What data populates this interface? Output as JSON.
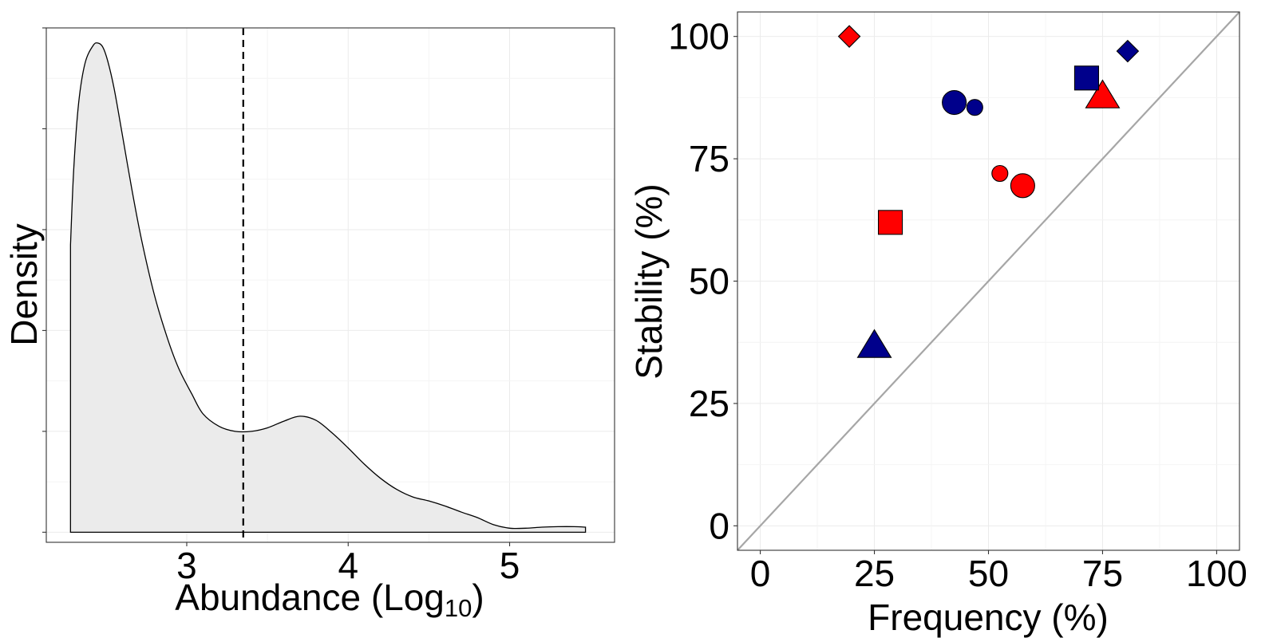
{
  "chart_data": [
    {
      "type": "area",
      "subtype": "density",
      "title": "",
      "xlabel": "Abundance (Log",
      "xlabel_subscript": "10",
      "xlabel_suffix": ")",
      "ylabel": "Density",
      "xlim": [
        2.13,
        5.65
      ],
      "ylim": [
        -0.02,
        1.0
      ],
      "x_ticks": [
        3,
        4,
        5
      ],
      "x_tick_labels": [
        "3",
        "4",
        "5"
      ],
      "y_ticks": [
        0,
        0.2,
        0.4,
        0.6,
        0.8,
        1.0
      ],
      "y_tick_labels": [
        "",
        "",
        "",
        "",
        "",
        ""
      ],
      "grid": true,
      "fill_color": "#ebebeb",
      "line_color": "#000000",
      "reference_line": {
        "x": 3.35,
        "style": "dashed"
      },
      "x": [
        2.28,
        2.3,
        2.33,
        2.37,
        2.42,
        2.45,
        2.48,
        2.51,
        2.55,
        2.6,
        2.66,
        2.72,
        2.8,
        2.88,
        2.95,
        3.03,
        3.1,
        3.2,
        3.3,
        3.4,
        3.5,
        3.6,
        3.7,
        3.8,
        3.9,
        4.0,
        4.1,
        4.2,
        4.3,
        4.4,
        4.5,
        4.6,
        4.7,
        4.8,
        4.9,
        5.0,
        5.1,
        5.2,
        5.3,
        5.4,
        5.47
      ],
      "y": [
        0.57,
        0.72,
        0.85,
        0.93,
        0.965,
        0.97,
        0.962,
        0.935,
        0.88,
        0.79,
        0.68,
        0.58,
        0.47,
        0.385,
        0.325,
        0.275,
        0.235,
        0.21,
        0.2,
        0.2,
        0.207,
        0.22,
        0.23,
        0.222,
        0.197,
        0.167,
        0.135,
        0.107,
        0.085,
        0.07,
        0.062,
        0.052,
        0.04,
        0.029,
        0.015,
        0.008,
        0.008,
        0.01,
        0.011,
        0.011,
        0.01
      ]
    },
    {
      "type": "scatter",
      "title": "",
      "xlabel": "Frequency (%)",
      "ylabel": "Stability (%)",
      "xlim": [
        -5,
        105
      ],
      "ylim": [
        -5,
        105
      ],
      "x_ticks": [
        0,
        25,
        50,
        75,
        100
      ],
      "x_tick_labels": [
        "0",
        "25",
        "50",
        "75",
        "100"
      ],
      "y_ticks": [
        0,
        25,
        50,
        75,
        100
      ],
      "y_tick_labels": [
        "0",
        "25",
        "50",
        "75",
        "100"
      ],
      "grid": true,
      "reference_line": {
        "type": "identity",
        "color": "#a6a6a6"
      },
      "colors": {
        "red": "#ff0000",
        "blue": "#00008b"
      },
      "points": [
        {
          "x": 19.5,
          "y": 100,
          "shape": "diamond",
          "color": "red",
          "size": "small"
        },
        {
          "x": 28.5,
          "y": 62,
          "shape": "square",
          "color": "red",
          "size": "large"
        },
        {
          "x": 52.5,
          "y": 72,
          "shape": "circle",
          "color": "red",
          "size": "small"
        },
        {
          "x": 57.5,
          "y": 69.5,
          "shape": "circle",
          "color": "red",
          "size": "large"
        },
        {
          "x": 75.0,
          "y": 88,
          "shape": "triangle",
          "color": "red",
          "size": "large"
        },
        {
          "x": 25.0,
          "y": 37,
          "shape": "triangle",
          "color": "blue",
          "size": "large"
        },
        {
          "x": 42.5,
          "y": 86.5,
          "shape": "circle",
          "color": "blue",
          "size": "large"
        },
        {
          "x": 47.0,
          "y": 85.5,
          "shape": "circle",
          "color": "blue",
          "size": "small"
        },
        {
          "x": 71.5,
          "y": 91.5,
          "shape": "square",
          "color": "blue",
          "size": "large"
        },
        {
          "x": 80.5,
          "y": 97,
          "shape": "diamond",
          "color": "blue",
          "size": "small"
        }
      ]
    }
  ]
}
